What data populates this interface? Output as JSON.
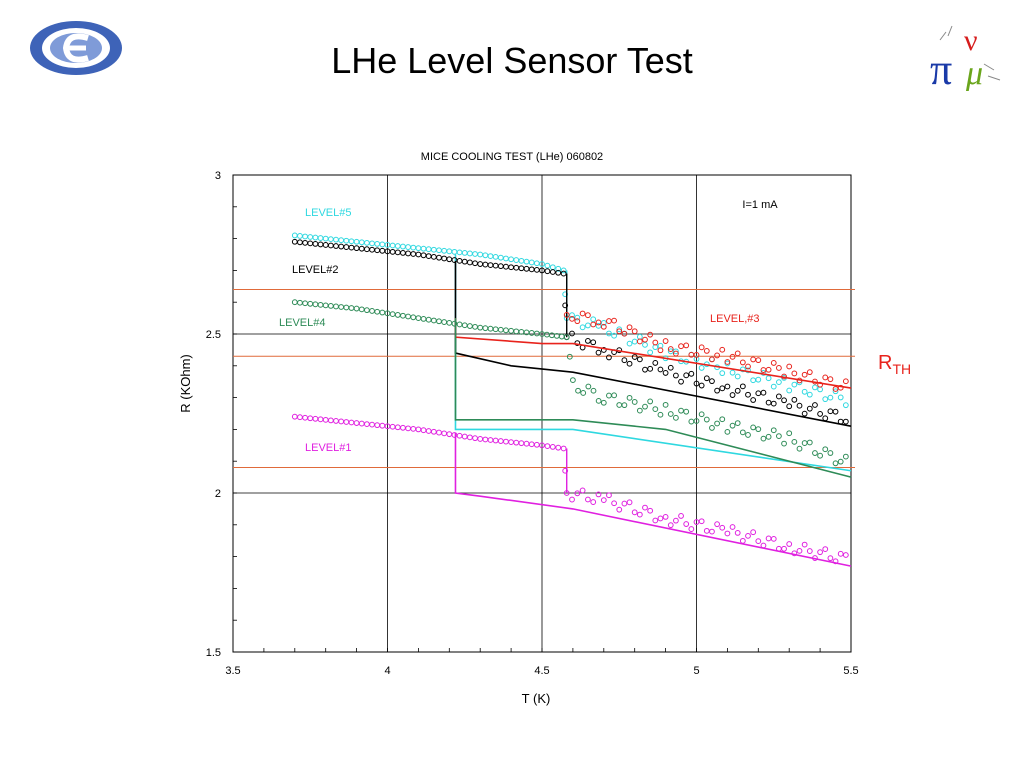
{
  "slide": {
    "title": "LHe Level Sensor Test"
  },
  "logos": {
    "left": "logo-emblem",
    "right": "mice-pi-nu-logo"
  },
  "threshold_label": {
    "main": "R",
    "sub": "TH",
    "color": "#e8231c"
  },
  "chart_data": {
    "type": "scatter",
    "title": "MICE COOLING TEST (LHe) 060802",
    "xlabel": "T (K)",
    "ylabel": "R (KOhm)",
    "xlim": [
      3.5,
      5.5
    ],
    "ylim": [
      1.5,
      3
    ],
    "xticks": [
      "3.5",
      "4",
      "4.5",
      "5",
      "5.5"
    ],
    "yticks": [
      "1.5",
      "2",
      "2.5",
      "3"
    ],
    "grid": true,
    "annotation": "I=1 mA",
    "thresholds": [
      2.64,
      2.43,
      2.08
    ],
    "threshold_color": "#e06a3a",
    "series": [
      {
        "name": "LEVEL#5",
        "color": "#2fd8e0",
        "points": [
          [
            3.7,
            2.81
          ],
          [
            3.9,
            2.79
          ],
          [
            4.1,
            2.77
          ],
          [
            4.3,
            2.75
          ],
          [
            4.5,
            2.72
          ],
          [
            4.57,
            2.7
          ],
          [
            4.58,
            2.55
          ],
          [
            4.7,
            2.52
          ],
          [
            4.9,
            2.44
          ],
          [
            5.1,
            2.39
          ],
          [
            5.3,
            2.34
          ],
          [
            5.5,
            2.29
          ]
        ],
        "line": [
          [
            4.22,
            2.75
          ],
          [
            4.22,
            2.2
          ],
          [
            4.6,
            2.2
          ],
          [
            5.5,
            2.07
          ]
        ]
      },
      {
        "name": "LEVEL#2",
        "color": "#000000",
        "points": [
          [
            3.7,
            2.79
          ],
          [
            3.9,
            2.77
          ],
          [
            4.1,
            2.75
          ],
          [
            4.3,
            2.72
          ],
          [
            4.5,
            2.7
          ],
          [
            4.57,
            2.69
          ],
          [
            4.58,
            2.49
          ],
          [
            4.7,
            2.45
          ],
          [
            4.9,
            2.38
          ],
          [
            5.1,
            2.33
          ],
          [
            5.3,
            2.28
          ],
          [
            5.5,
            2.23
          ]
        ],
        "line": [
          [
            4.22,
            2.73
          ],
          [
            4.22,
            2.44
          ],
          [
            4.4,
            2.4
          ],
          [
            4.6,
            2.38
          ],
          [
            5.5,
            2.21
          ]
        ]
      },
      {
        "name": "LEVEL,#3",
        "color": "#e8231c",
        "points": [
          [
            4.58,
            2.56
          ],
          [
            4.7,
            2.54
          ],
          [
            4.9,
            2.46
          ],
          [
            5.1,
            2.43
          ],
          [
            5.3,
            2.38
          ],
          [
            5.5,
            2.33
          ]
        ],
        "line": [
          [
            4.22,
            2.55
          ],
          [
            4.22,
            2.49
          ],
          [
            4.5,
            2.47
          ],
          [
            4.6,
            2.47
          ],
          [
            5.5,
            2.33
          ]
        ]
      },
      {
        "name": "LEVEL#4",
        "color": "#2e8b57",
        "points": [
          [
            3.7,
            2.6
          ],
          [
            3.9,
            2.58
          ],
          [
            4.1,
            2.55
          ],
          [
            4.3,
            2.52
          ],
          [
            4.5,
            2.5
          ],
          [
            4.58,
            2.49
          ],
          [
            4.6,
            2.34
          ],
          [
            4.7,
            2.3
          ],
          [
            4.9,
            2.26
          ],
          [
            5.1,
            2.21
          ],
          [
            5.3,
            2.17
          ],
          [
            5.5,
            2.09
          ]
        ],
        "line": [
          [
            4.22,
            2.55
          ],
          [
            4.22,
            2.23
          ],
          [
            4.6,
            2.23
          ],
          [
            4.9,
            2.2
          ],
          [
            5.5,
            2.05
          ]
        ]
      },
      {
        "name": "LEVEL#1",
        "color": "#e020e0",
        "points": [
          [
            3.7,
            2.24
          ],
          [
            3.9,
            2.22
          ],
          [
            4.1,
            2.2
          ],
          [
            4.3,
            2.17
          ],
          [
            4.5,
            2.15
          ],
          [
            4.57,
            2.14
          ],
          [
            4.58,
            2.0
          ],
          [
            4.7,
            1.98
          ],
          [
            4.9,
            1.92
          ],
          [
            5.1,
            1.88
          ],
          [
            5.3,
            1.83
          ],
          [
            5.5,
            1.79
          ]
        ],
        "line": [
          [
            4.22,
            2.19
          ],
          [
            4.22,
            2.0
          ],
          [
            4.3,
            1.99
          ],
          [
            4.6,
            1.95
          ],
          [
            5.5,
            1.77
          ]
        ]
      }
    ]
  }
}
